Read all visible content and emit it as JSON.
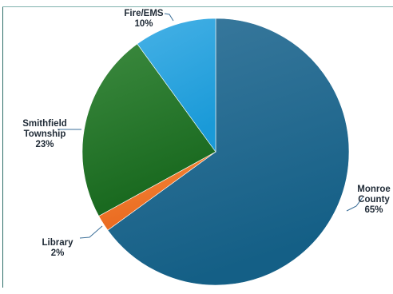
{
  "chart_data": {
    "type": "pie",
    "title": "",
    "slices": [
      {
        "label": "Monroe County",
        "label_lines": [
          "Monroe",
          "County"
        ],
        "value": 65,
        "value_text": "65%",
        "color": "#145f86",
        "color_light": "#3b7a9e"
      },
      {
        "label": "Library",
        "label_lines": [
          "Library"
        ],
        "value": 2,
        "value_text": "2%",
        "color": "#e9681f",
        "color_light": "#f48a3a"
      },
      {
        "label": "Smithfield Township",
        "label_lines": [
          "Smithfield",
          "Township"
        ],
        "value": 23,
        "value_text": "23%",
        "color": "#17671d",
        "color_light": "#3c8a3f"
      },
      {
        "label": "Fire/EMS",
        "label_lines": [
          "Fire/EMS"
        ],
        "value": 10,
        "value_text": "10%",
        "color": "#1a9ad8",
        "color_light": "#46b1e6"
      }
    ],
    "start_angle_deg": 0,
    "direction": "clockwise",
    "legend": "none"
  }
}
